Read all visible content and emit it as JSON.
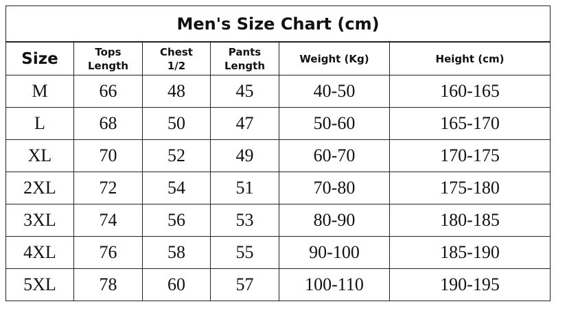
{
  "header": {
    "title": "Men's Size Chart (cm)"
  },
  "table": {
    "columns": [
      "Size",
      "Tops Length",
      "Chest 1/2",
      "Pants Length",
      "Weight (Kg)",
      "Height (cm)"
    ],
    "rows": [
      [
        "M",
        "66",
        "48",
        "45",
        "40-50",
        "160-165"
      ],
      [
        "L",
        "68",
        "50",
        "47",
        "50-60",
        "165-170"
      ],
      [
        "XL",
        "70",
        "52",
        "49",
        "60-70",
        "170-175"
      ],
      [
        "2XL",
        "72",
        "54",
        "51",
        "70-80",
        "175-180"
      ],
      [
        "3XL",
        "74",
        "56",
        "53",
        "80-90",
        "180-185"
      ],
      [
        "4XL",
        "76",
        "58",
        "55",
        "90-100",
        "185-190"
      ],
      [
        "5XL",
        "78",
        "60",
        "57",
        "100-110",
        "190-195"
      ]
    ]
  }
}
